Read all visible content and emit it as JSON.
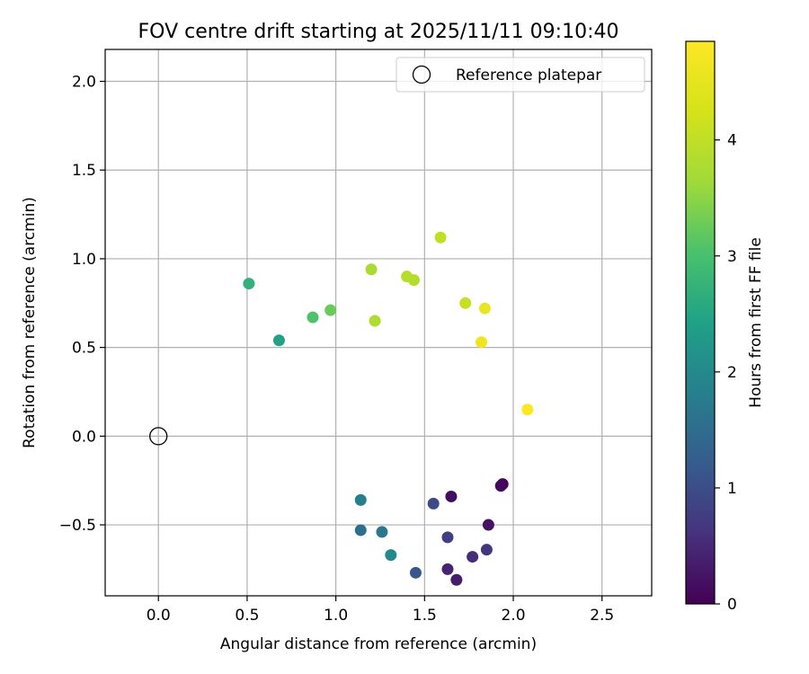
{
  "chart_data": {
    "type": "scatter",
    "title": "FOV centre drift starting at 2025/11/11 09:10:40",
    "xlabel": "Angular distance from reference (arcmin)",
    "ylabel": "Rotation from reference (arcmin)",
    "xlim": [
      -0.3,
      2.78
    ],
    "ylim": [
      -0.9,
      2.18
    ],
    "x_ticks": [
      "0.0",
      "0.5",
      "1.0",
      "1.5",
      "2.0",
      "2.5"
    ],
    "x_tick_values": [
      0.0,
      0.5,
      1.0,
      1.5,
      2.0,
      2.5
    ],
    "y_ticks": [
      "−0.5",
      "0.0",
      "0.5",
      "1.0",
      "1.5",
      "2.0"
    ],
    "y_tick_values": [
      -0.5,
      0.0,
      0.5,
      1.0,
      1.5,
      2.0
    ],
    "grid": true,
    "legend": {
      "position": "top-right",
      "entries": [
        "Reference platepar"
      ]
    },
    "reference_point": {
      "label": "Reference platepar",
      "x": 0.0,
      "y": 0.0
    },
    "colorbar": {
      "label": "Hours from first FF file",
      "colormap": "viridis",
      "range": [
        0,
        4.85
      ],
      "ticks": [
        "0",
        "1",
        "2",
        "3",
        "4"
      ],
      "tick_values": [
        0,
        1,
        2,
        3,
        4
      ]
    },
    "points": [
      {
        "x": 1.94,
        "y": -0.27,
        "h": 0.05
      },
      {
        "x": 1.93,
        "y": -0.28,
        "h": 0.1
      },
      {
        "x": 1.65,
        "y": -0.34,
        "h": 0.15
      },
      {
        "x": 1.86,
        "y": -0.5,
        "h": 0.2
      },
      {
        "x": 1.68,
        "y": -0.81,
        "h": 0.35
      },
      {
        "x": 1.63,
        "y": -0.75,
        "h": 0.45
      },
      {
        "x": 1.77,
        "y": -0.68,
        "h": 0.55
      },
      {
        "x": 1.85,
        "y": -0.64,
        "h": 0.65
      },
      {
        "x": 1.63,
        "y": -0.57,
        "h": 0.8
      },
      {
        "x": 1.55,
        "y": -0.38,
        "h": 0.95
      },
      {
        "x": 1.45,
        "y": -0.77,
        "h": 1.15
      },
      {
        "x": 1.14,
        "y": -0.53,
        "h": 1.5
      },
      {
        "x": 1.26,
        "y": -0.54,
        "h": 1.7
      },
      {
        "x": 1.14,
        "y": -0.36,
        "h": 1.8
      },
      {
        "x": 1.31,
        "y": -0.67,
        "h": 2.0
      },
      {
        "x": 0.68,
        "y": 0.54,
        "h": 2.45
      },
      {
        "x": 0.51,
        "y": 0.86,
        "h": 2.7
      },
      {
        "x": 0.87,
        "y": 0.67,
        "h": 3.05
      },
      {
        "x": 0.97,
        "y": 0.71,
        "h": 3.25
      },
      {
        "x": 1.2,
        "y": 0.94,
        "h": 3.75
      },
      {
        "x": 1.22,
        "y": 0.65,
        "h": 3.8
      },
      {
        "x": 1.44,
        "y": 0.88,
        "h": 3.85
      },
      {
        "x": 1.4,
        "y": 0.9,
        "h": 3.9
      },
      {
        "x": 1.59,
        "y": 1.12,
        "h": 4.0
      },
      {
        "x": 1.73,
        "y": 0.75,
        "h": 4.1
      },
      {
        "x": 1.84,
        "y": 0.72,
        "h": 4.55
      },
      {
        "x": 1.82,
        "y": 0.53,
        "h": 4.65
      },
      {
        "x": 2.08,
        "y": 0.15,
        "h": 4.85
      }
    ]
  }
}
